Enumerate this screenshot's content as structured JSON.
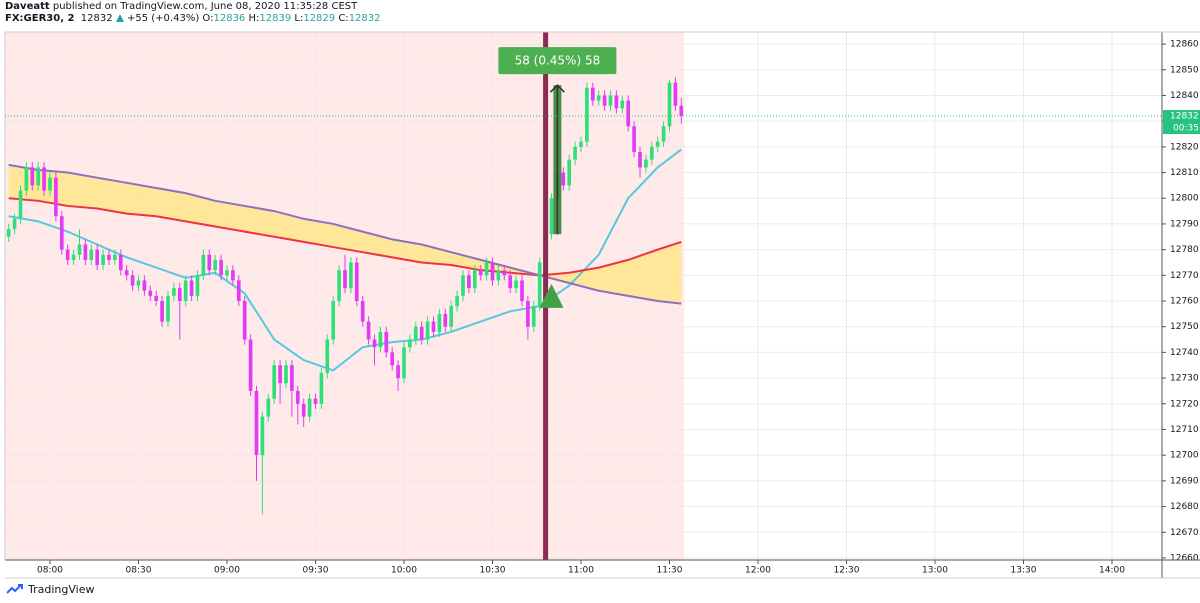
{
  "chart_data": {
    "type": "candlestick",
    "header": {
      "author": "Daveatt",
      "published": "published on TradingView.com, June 08, 2020 11:35:28 CEST",
      "symbol": "FX:GER30, 2",
      "change": "+55 (+0.43%)",
      "o_label": "O:",
      "h_label": "H:",
      "l_label": "L:",
      "c_label": "C:"
    },
    "footer": "TradingView",
    "up_color": "#2fe07a",
    "down_color": "#e03cf5",
    "grid": true,
    "xlim": [
      464.75,
      856.95
    ],
    "ylim": [
      12659.2,
      12864.7
    ],
    "xticks": [
      {
        "value": 480,
        "label": "08:00"
      },
      {
        "value": 510,
        "label": "08:30"
      },
      {
        "value": 540,
        "label": "09:00"
      },
      {
        "value": 570,
        "label": "09:30"
      },
      {
        "value": 600,
        "label": "10:00"
      },
      {
        "value": 630,
        "label": "10:30"
      },
      {
        "value": 660,
        "label": "11:00"
      },
      {
        "value": 690,
        "label": "11:30"
      },
      {
        "value": 720,
        "label": "12:00"
      },
      {
        "value": 750,
        "label": "12:30"
      },
      {
        "value": 780,
        "label": "13:00"
      },
      {
        "value": 810,
        "label": "13:30"
      },
      {
        "value": 840,
        "label": "14:00"
      }
    ],
    "yticks": [
      12660,
      12670,
      12680,
      12690,
      12700,
      12710,
      12720,
      12730,
      12740,
      12750,
      12760,
      12770,
      12780,
      12790,
      12800,
      12810,
      12820,
      12830,
      12840,
      12850,
      12860
    ],
    "x": [
      466,
      468,
      470,
      472,
      474,
      476,
      478,
      480,
      482,
      484,
      486,
      488,
      490,
      492,
      494,
      496,
      498,
      500,
      502,
      504,
      506,
      508,
      510,
      512,
      514,
      516,
      518,
      520,
      522,
      524,
      526,
      528,
      530,
      532,
      534,
      536,
      538,
      540,
      542,
      544,
      546,
      548,
      550,
      552,
      554,
      556,
      558,
      560,
      562,
      564,
      566,
      568,
      570,
      572,
      574,
      576,
      578,
      580,
      582,
      584,
      586,
      588,
      590,
      592,
      594,
      596,
      598,
      600,
      602,
      604,
      606,
      608,
      610,
      612,
      614,
      616,
      618,
      620,
      622,
      624,
      626,
      628,
      630,
      632,
      634,
      636,
      638,
      640,
      642,
      644,
      646,
      648,
      650,
      652,
      654,
      656,
      658,
      660,
      662,
      664,
      666,
      668,
      670,
      672,
      674,
      676,
      678,
      680,
      682,
      684,
      686,
      688,
      690,
      692,
      694
    ],
    "open": [
      12785,
      12788,
      12792,
      12803,
      12812,
      12805,
      12812,
      12803,
      12808,
      12793,
      12780,
      12776,
      12778,
      12782,
      12776,
      12780,
      12774,
      12778,
      12776,
      12778,
      12772,
      12770,
      12766,
      12768,
      12764,
      12762,
      12760,
      12752,
      12762,
      12765,
      12760,
      12768,
      12762,
      12770,
      12778,
      12772,
      12776,
      12770,
      12772,
      12768,
      12760,
      12745,
      12725,
      12700,
      12715,
      12722,
      12735,
      12728,
      12735,
      12725,
      12720,
      12715,
      12722,
      12720,
      12732,
      12745,
      12760,
      12772,
      12765,
      12775,
      12760,
      12752,
      12745,
      12742,
      12748,
      12740,
      12735,
      12730,
      12742,
      12745,
      12750,
      12745,
      12752,
      12748,
      12755,
      12750,
      12758,
      12762,
      12770,
      12765,
      12772,
      12770,
      12775,
      12768,
      12772,
      12770,
      12765,
      12768,
      12760,
      12750,
      12758,
      12775,
      12786,
      12800,
      12810,
      12805,
      12815,
      12820,
      12822,
      12843,
      12838,
      12840,
      12836,
      12840,
      12835,
      12838,
      12828,
      12818,
      12812,
      12815,
      12820,
      12822,
      12828,
      12845,
      12836
    ],
    "high": [
      12790,
      12794,
      12805,
      12814,
      12814,
      12814,
      12814,
      12810,
      12810,
      12795,
      12782,
      12780,
      12788,
      12784,
      12782,
      12782,
      12780,
      12780,
      12780,
      12780,
      12774,
      12772,
      12770,
      12770,
      12766,
      12764,
      12762,
      12764,
      12767,
      12767,
      12770,
      12770,
      12772,
      12780,
      12780,
      12778,
      12778,
      12774,
      12774,
      12770,
      12762,
      12747,
      12727,
      12717,
      12724,
      12737,
      12737,
      12737,
      12737,
      12727,
      12722,
      12724,
      12724,
      12734,
      12747,
      12762,
      12774,
      12778,
      12777,
      12777,
      12762,
      12754,
      12747,
      12750,
      12750,
      12742,
      12737,
      12744,
      12747,
      12752,
      12752,
      12754,
      12754,
      12757,
      12757,
      12760,
      12764,
      12772,
      12772,
      12774,
      12774,
      12777,
      12777,
      12774,
      12774,
      12772,
      12770,
      12770,
      12762,
      12760,
      12777,
      12788,
      12802,
      12812,
      12812,
      12817,
      12822,
      12824,
      12845,
      12845,
      12842,
      12842,
      12842,
      12842,
      12840,
      12840,
      12830,
      12820,
      12817,
      12822,
      12824,
      12830,
      12846,
      12847,
      12839
    ],
    "low": [
      12783,
      12786,
      12790,
      12801,
      12803,
      12803,
      12801,
      12801,
      12791,
      12778,
      12774,
      12774,
      12776,
      12774,
      12774,
      12772,
      12772,
      12774,
      12774,
      12770,
      12768,
      12764,
      12764,
      12762,
      12760,
      12758,
      12750,
      12750,
      12760,
      12745,
      12758,
      12760,
      12760,
      12768,
      12770,
      12770,
      12768,
      12768,
      12766,
      12758,
      12743,
      12723,
      12690,
      12677,
      12713,
      12720,
      12720,
      12726,
      12715,
      12712,
      12711,
      12713,
      12718,
      12718,
      12730,
      12743,
      12758,
      12763,
      12763,
      12758,
      12750,
      12743,
      12735,
      12740,
      12738,
      12733,
      12725,
      12728,
      12740,
      12743,
      12743,
      12743,
      12746,
      12746,
      12748,
      12748,
      12756,
      12760,
      12763,
      12763,
      12768,
      12768,
      12766,
      12766,
      12768,
      12763,
      12763,
      12758,
      12745,
      12748,
      12756,
      12773,
      12784,
      12798,
      12803,
      12803,
      12813,
      12818,
      12820,
      12836,
      12836,
      12834,
      12834,
      12833,
      12833,
      12826,
      12816,
      12808,
      12810,
      12813,
      12818,
      12820,
      12826,
      12834,
      12829
    ],
    "close": [
      12788,
      12792,
      12803,
      12812,
      12805,
      12812,
      12803,
      12808,
      12793,
      12780,
      12776,
      12778,
      12782,
      12776,
      12780,
      12774,
      12778,
      12776,
      12778,
      12772,
      12770,
      12766,
      12768,
      12764,
      12762,
      12760,
      12752,
      12762,
      12765,
      12760,
      12768,
      12762,
      12770,
      12778,
      12772,
      12776,
      12770,
      12772,
      12768,
      12760,
      12745,
      12725,
      12700,
      12715,
      12722,
      12735,
      12728,
      12735,
      12725,
      12720,
      12715,
      12722,
      12720,
      12732,
      12745,
      12760,
      12772,
      12765,
      12775,
      12760,
      12752,
      12745,
      12742,
      12748,
      12740,
      12735,
      12730,
      12742,
      12745,
      12750,
      12745,
      12752,
      12748,
      12755,
      12750,
      12758,
      12762,
      12770,
      12765,
      12772,
      12770,
      12775,
      12768,
      12772,
      12770,
      12765,
      12768,
      12760,
      12750,
      12758,
      12775,
      12786,
      12800,
      12810,
      12805,
      12815,
      12820,
      12822,
      12843,
      12838,
      12840,
      12836,
      12840,
      12835,
      12838,
      12828,
      12818,
      12812,
      12815,
      12820,
      12822,
      12828,
      12845,
      12836,
      12832
    ],
    "ma_x": [
      466,
      476,
      486,
      496,
      506,
      516,
      526,
      536,
      546,
      556,
      566,
      576,
      586,
      596,
      606,
      616,
      626,
      636,
      646,
      656,
      666,
      676,
      686,
      694
    ],
    "lines": [
      {
        "color": "#56c8e0",
        "values": [
          12793,
          12791,
          12787,
          12782,
          12777,
          12773,
          12769,
          12771,
          12763,
          12745,
          12737,
          12733,
          12742,
          12744,
          12745,
          12748,
          12752,
          12756,
          12758,
          12766,
          12778,
          12800,
          12812,
          12819
        ]
      },
      {
        "color": "#ee3344",
        "values": [
          12800,
          12799,
          12797,
          12796,
          12794,
          12793,
          12791,
          12789,
          12787,
          12785,
          12783,
          12781,
          12779,
          12777,
          12775,
          12774,
          12772,
          12771,
          12770,
          12771,
          12773,
          12776,
          12780,
          12783
        ]
      },
      {
        "color": "#8e6fc4",
        "values": [
          12813,
          12811,
          12810,
          12808,
          12806,
          12804,
          12802,
          12799,
          12797,
          12795,
          12792,
          12790,
          12787,
          12784,
          12782,
          12779,
          12776,
          12773,
          12770,
          12767,
          12764,
          12762,
          12760,
          12759
        ]
      }
    ],
    "band_color": "#ffe58a",
    "vertical_line_x": 648,
    "measure": {
      "label": "58 (0.45%) 58",
      "x": 652,
      "from": 12786,
      "to": 12844
    },
    "signal": {
      "x": 650,
      "y": 12762
    },
    "last_price": 12832,
    "countdown": "00:35"
  }
}
